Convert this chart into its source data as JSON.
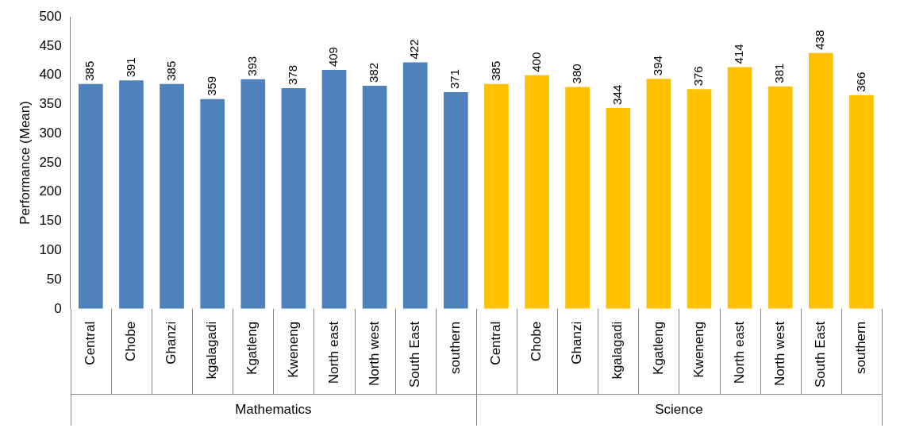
{
  "chart_data": {
    "type": "bar",
    "ylabel": "Performance (Mean)",
    "categories": [
      "Central",
      "Chobe",
      "Ghanzi",
      "kgalagadi",
      "Kgatleng",
      "Kweneng",
      "North east",
      "North west",
      "South East",
      "southern",
      "Central",
      "Chobe",
      "Ghanzi",
      "kgalagadi",
      "Kgatleng",
      "Kweneng",
      "North east",
      "North west",
      "South East",
      "southern"
    ],
    "values": [
      385,
      391,
      385,
      359,
      393,
      378,
      409,
      382,
      422,
      371,
      385,
      400,
      380,
      344,
      394,
      376,
      414,
      381,
      438,
      366
    ],
    "colors": [
      "#4f81bd",
      "#4f81bd",
      "#4f81bd",
      "#4f81bd",
      "#4f81bd",
      "#4f81bd",
      "#4f81bd",
      "#4f81bd",
      "#4f81bd",
      "#4f81bd",
      "#ffc000",
      "#ffc000",
      "#ffc000",
      "#ffc000",
      "#ffc000",
      "#ffc000",
      "#ffc000",
      "#ffc000",
      "#ffc000",
      "#ffc000"
    ],
    "annotations": [
      "Mathematics",
      "Science"
    ],
    "ylim": [
      0,
      500
    ],
    "yticks": [
      0,
      50,
      100,
      150,
      200,
      250,
      300,
      350,
      400,
      450,
      500
    ],
    "grid": false,
    "legend": false,
    "data_labels": true
  }
}
